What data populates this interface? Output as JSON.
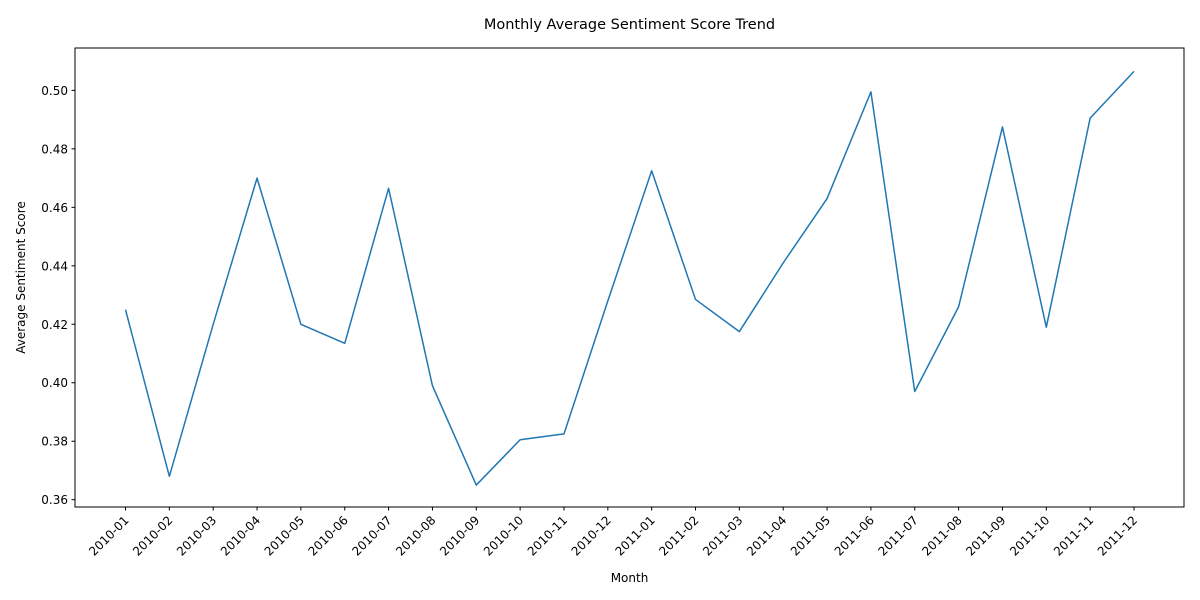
{
  "chart_data": {
    "type": "line",
    "title": "Monthly Average Sentiment Score Trend",
    "xlabel": "Month",
    "ylabel": "Average Sentiment Score",
    "categories": [
      "2010-01",
      "2010-02",
      "2010-03",
      "2010-04",
      "2010-05",
      "2010-06",
      "2010-07",
      "2010-08",
      "2010-09",
      "2010-10",
      "2010-11",
      "2010-12",
      "2011-01",
      "2011-02",
      "2011-03",
      "2011-04",
      "2011-05",
      "2011-06",
      "2011-07",
      "2011-08",
      "2011-09",
      "2011-10",
      "2011-11",
      "2011-12"
    ],
    "series": [
      {
        "values": [
          0.425,
          0.368,
          0.42,
          0.47,
          0.42,
          0.4135,
          0.4665,
          0.399,
          0.365,
          0.3805,
          0.3825,
          0.428,
          0.4725,
          0.4285,
          0.4175,
          0.441,
          0.463,
          0.4995,
          0.397,
          0.426,
          0.4875,
          0.419,
          0.4905,
          0.5065
        ],
        "color": "#1f77b4"
      }
    ],
    "ylim": [
      0.3575,
      0.5145
    ],
    "yticks": [
      0.36,
      0.38,
      0.4,
      0.42,
      0.44,
      0.46,
      0.48,
      0.5
    ],
    "ytick_labels": [
      "0.36",
      "0.38",
      "0.40",
      "0.42",
      "0.44",
      "0.46",
      "0.48",
      "0.50"
    ],
    "grid": false,
    "legend": "none"
  }
}
